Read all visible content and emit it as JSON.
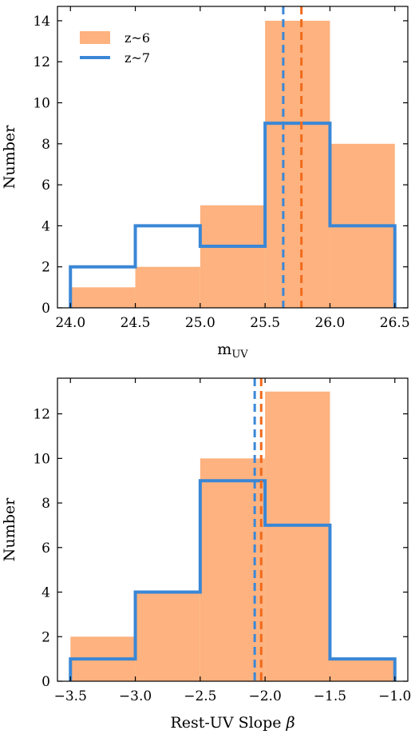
{
  "chart_data": [
    {
      "type": "bar",
      "subtype": "histogram",
      "xlabel_main": "m",
      "xlabel_sub": "UV",
      "ylabel": "Number",
      "xlim": [
        23.9,
        26.6
      ],
      "ylim": [
        0,
        14.7
      ],
      "xticks": [
        24.0,
        24.5,
        25.0,
        25.5,
        26.0,
        26.5
      ],
      "xtick_labels": [
        "24.0",
        "24.5",
        "25.0",
        "25.5",
        "26.0",
        "26.5"
      ],
      "yticks": [
        0,
        2,
        4,
        6,
        8,
        10,
        12,
        14
      ],
      "ytick_labels": [
        "0",
        "2",
        "4",
        "6",
        "8",
        "10",
        "12",
        "14"
      ],
      "bin_edges": [
        24.0,
        24.5,
        25.0,
        25.5,
        26.0,
        26.5
      ],
      "series": [
        {
          "name": "z~6",
          "style": "filled",
          "color": "#fdb27f",
          "values": [
            1,
            2,
            5,
            14,
            8
          ],
          "median": 25.78,
          "median_color": "#f26a1b"
        },
        {
          "name": "z~7",
          "style": "step",
          "color": "#3a87d6",
          "values": [
            2,
            4,
            3,
            9,
            4
          ],
          "median": 25.64,
          "median_color": "#3a87d6"
        }
      ],
      "legend": "top-left",
      "grid": false
    },
    {
      "type": "bar",
      "subtype": "histogram",
      "xlabel_main": "Rest-UV Slope ",
      "xlabel_sym": "β",
      "ylabel": "Number",
      "xlim": [
        -3.6,
        -0.9
      ],
      "ylim": [
        0,
        13.6
      ],
      "xticks": [
        -3.5,
        -3.0,
        -2.5,
        -2.0,
        -1.5,
        -1.0
      ],
      "xtick_labels": [
        "−3.5",
        "−3.0",
        "−2.5",
        "−2.0",
        "−1.5",
        "−1.0"
      ],
      "yticks": [
        0,
        2,
        4,
        6,
        8,
        10,
        12
      ],
      "ytick_labels": [
        "0",
        "2",
        "4",
        "6",
        "8",
        "10",
        "12"
      ],
      "bin_edges": [
        -3.5,
        -3.0,
        -2.5,
        -2.0,
        -1.5,
        -1.0
      ],
      "series": [
        {
          "name": "z~6",
          "style": "filled",
          "color": "#fdb27f",
          "values": [
            2,
            4,
            10,
            13,
            1
          ],
          "median": -2.03,
          "median_color": "#f26a1b"
        },
        {
          "name": "z~7",
          "style": "step",
          "color": "#3a87d6",
          "values": [
            1,
            4,
            9,
            7,
            1
          ],
          "median": -2.08,
          "median_color": "#3a87d6"
        }
      ],
      "legend": "none",
      "grid": false
    }
  ]
}
